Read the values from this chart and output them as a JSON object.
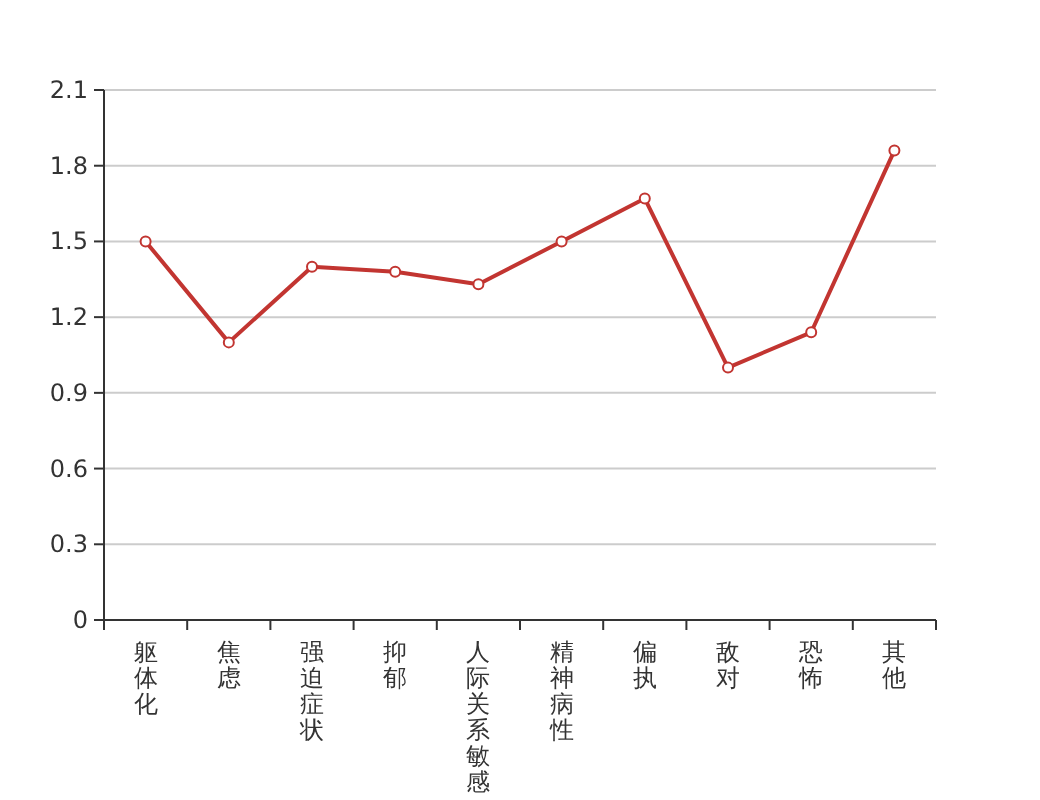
{
  "chart_data": {
    "type": "line",
    "categories": [
      "躯体化",
      "焦虑",
      "强迫症状",
      "抑郁",
      "人际关系敏感",
      "精神病性",
      "偏执",
      "敌对",
      "恐怖",
      "其他"
    ],
    "series": [
      {
        "color": "#c23531",
        "values": [
          1.5,
          1.1,
          1.4,
          1.38,
          1.33,
          1.5,
          1.67,
          1.0,
          1.14,
          1.86
        ]
      }
    ],
    "ylim": [
      0,
      2.1
    ],
    "yticks": [
      0,
      0.3,
      0.6,
      0.9,
      1.2,
      1.5,
      1.8,
      2.1
    ],
    "grid": "y",
    "marker": "circle"
  }
}
